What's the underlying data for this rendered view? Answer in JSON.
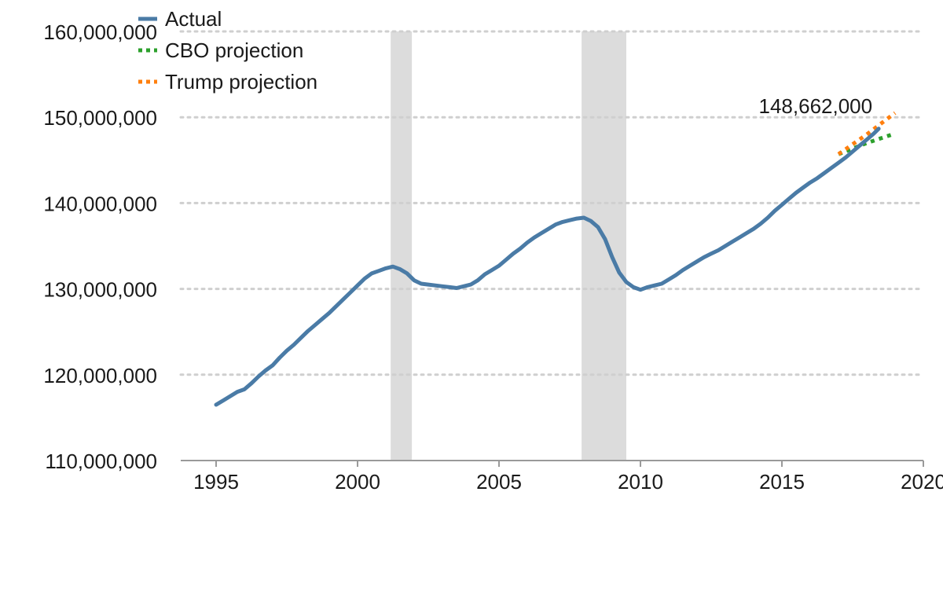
{
  "chart_data": {
    "type": "line",
    "title": "",
    "xlabel": "",
    "ylabel": "",
    "xlim": [
      1993.75,
      2020
    ],
    "ylim": [
      110000000,
      160000000
    ],
    "x_ticks": [
      1995,
      2000,
      2005,
      2010,
      2015,
      2020
    ],
    "x_tick_labels": [
      "1995",
      "2000",
      "2005",
      "2010",
      "2015",
      "2020"
    ],
    "y_ticks": [
      110000000,
      120000000,
      130000000,
      140000000,
      150000000,
      160000000
    ],
    "y_tick_labels": [
      "110,000,000",
      "120,000,000",
      "130,000,000",
      "140,000,000",
      "150,000,000",
      "160,000,000"
    ],
    "grid": "horizontal dotted",
    "legend_position": "top-left",
    "recessions": [
      [
        2001.17,
        2001.92
      ],
      [
        2007.92,
        2009.5
      ]
    ],
    "series": [
      {
        "name": "Actual",
        "style": "solid",
        "color": "#4a7ba6",
        "x": [
          1995.0,
          1995.25,
          1995.5,
          1995.75,
          1996.0,
          1996.25,
          1996.5,
          1996.75,
          1997.0,
          1997.25,
          1997.5,
          1997.75,
          1998.0,
          1998.25,
          1998.5,
          1998.75,
          1999.0,
          1999.25,
          1999.5,
          1999.75,
          2000.0,
          2000.25,
          2000.5,
          2000.75,
          2001.0,
          2001.25,
          2001.5,
          2001.75,
          2002.0,
          2002.25,
          2002.5,
          2002.75,
          2003.0,
          2003.25,
          2003.5,
          2003.75,
          2004.0,
          2004.25,
          2004.5,
          2004.75,
          2005.0,
          2005.25,
          2005.5,
          2005.75,
          2006.0,
          2006.25,
          2006.5,
          2006.75,
          2007.0,
          2007.25,
          2007.5,
          2007.75,
          2008.0,
          2008.25,
          2008.5,
          2008.75,
          2009.0,
          2009.25,
          2009.5,
          2009.75,
          2010.0,
          2010.25,
          2010.5,
          2010.75,
          2011.0,
          2011.25,
          2011.5,
          2011.75,
          2012.0,
          2012.25,
          2012.5,
          2012.75,
          2013.0,
          2013.25,
          2013.5,
          2013.75,
          2014.0,
          2014.25,
          2014.5,
          2014.75,
          2015.0,
          2015.25,
          2015.5,
          2015.75,
          2016.0,
          2016.25,
          2016.5,
          2016.75,
          2017.0,
          2017.25,
          2017.5,
          2017.75,
          2018.0,
          2018.25,
          2018.42
        ],
        "y": [
          116500000,
          117000000,
          117500000,
          118000000,
          118300000,
          119000000,
          119800000,
          120500000,
          121100000,
          122000000,
          122800000,
          123500000,
          124300000,
          125100000,
          125800000,
          126500000,
          127200000,
          128000000,
          128800000,
          129600000,
          130400000,
          131200000,
          131800000,
          132100000,
          132400000,
          132600000,
          132300000,
          131800000,
          131000000,
          130600000,
          130500000,
          130400000,
          130300000,
          130200000,
          130100000,
          130300000,
          130500000,
          131000000,
          131700000,
          132200000,
          132700000,
          133400000,
          134100000,
          134700000,
          135400000,
          136000000,
          136500000,
          137000000,
          137500000,
          137800000,
          138000000,
          138200000,
          138300000,
          137900000,
          137200000,
          135800000,
          133700000,
          131900000,
          130800000,
          130200000,
          129900000,
          130200000,
          130400000,
          130600000,
          131100000,
          131600000,
          132200000,
          132700000,
          133200000,
          133700000,
          134100000,
          134500000,
          135000000,
          135500000,
          136000000,
          136500000,
          137000000,
          137600000,
          138300000,
          139100000,
          139800000,
          140500000,
          141200000,
          141800000,
          142400000,
          142900000,
          143500000,
          144100000,
          144700000,
          145300000,
          146000000,
          146700000,
          147400000,
          148100000,
          148662000
        ]
      },
      {
        "name": "CBO projection",
        "style": "dotted",
        "color": "#2ca02c",
        "x": [
          2017.0,
          2018.0,
          2019.0
        ],
        "y": [
          145700000,
          147000000,
          148100000
        ]
      },
      {
        "name": "Trump projection",
        "style": "dotted",
        "color": "#ff7f0e",
        "x": [
          2017.0,
          2018.0,
          2019.0
        ],
        "y": [
          145700000,
          148000000,
          150500000
        ]
      }
    ],
    "annotations": [
      {
        "text": "148,662,000",
        "x": 2018.42,
        "y": 148662000
      }
    ]
  }
}
